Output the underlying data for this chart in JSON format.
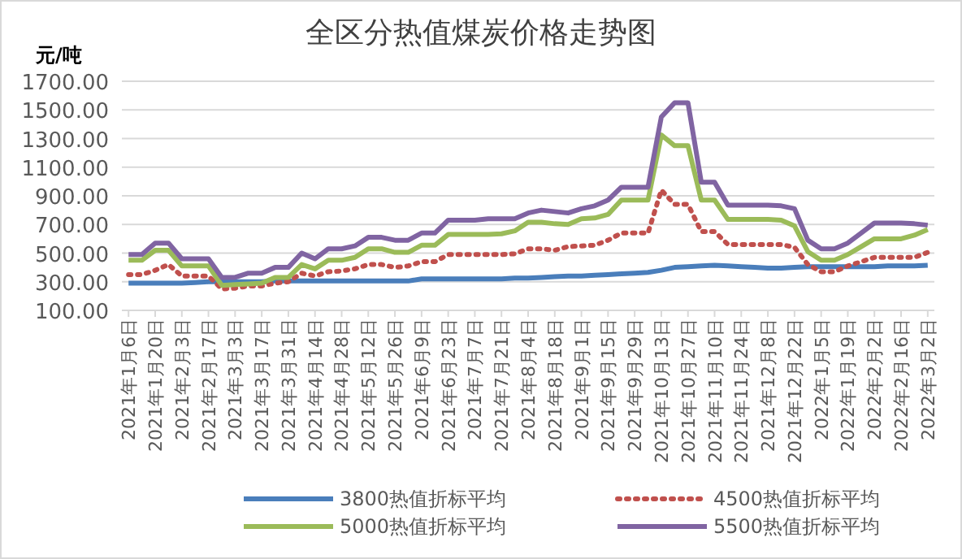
{
  "chart_data": {
    "type": "line",
    "title": "全区分热值煤炭价格走势图",
    "ylabel": "元/吨",
    "categories": [
      "2021年1月6日",
      null,
      "2021年1月20日",
      null,
      "2021年2月3日",
      null,
      "2021年2月17日",
      null,
      "2021年3月3日",
      null,
      "2021年3月17日",
      null,
      "2021年3月31日",
      null,
      "2021年4月14日",
      null,
      "2021年4月28日",
      null,
      "2021年5月12日",
      null,
      "2021年5月26日",
      null,
      "2021年6月9日",
      null,
      "2021年6月23日",
      null,
      "2021年7月7日",
      null,
      "2021年7月21日",
      null,
      "2021年8月4日",
      null,
      "2021年8月18日",
      null,
      "2021年9月1日",
      null,
      "2021年9月15日",
      null,
      "2021年9月29日",
      null,
      "2021年10月13日",
      null,
      "2021年10月27日",
      null,
      "2021年11月10日",
      null,
      "2021年11月24日",
      null,
      "2021年12月8日",
      null,
      "2021年12月22日",
      null,
      "2022年1月5日",
      null,
      "2022年1月19日",
      null,
      "2022年2月2日",
      null,
      "2022年2月16日",
      null,
      "2022年3月2日"
    ],
    "series": [
      {
        "name": "3800热值折标平均",
        "color": "#4a7ebb",
        "line_style": "solid",
        "values": [
          290,
          290,
          290,
          290,
          290,
          295,
          300,
          300,
          300,
          300,
          300,
          305,
          305,
          305,
          305,
          305,
          305,
          305,
          305,
          305,
          305,
          305,
          320,
          320,
          320,
          320,
          320,
          320,
          320,
          325,
          325,
          330,
          335,
          340,
          340,
          345,
          350,
          355,
          360,
          365,
          380,
          400,
          405,
          410,
          415,
          410,
          405,
          400,
          395,
          395,
          400,
          405,
          405,
          405,
          405,
          405,
          405,
          410,
          410,
          410,
          415
        ]
      },
      {
        "name": "4500热值折标平均",
        "color": "#c0504d",
        "line_style": "dotted",
        "values": [
          350,
          350,
          380,
          420,
          340,
          340,
          340,
          250,
          255,
          270,
          270,
          290,
          300,
          360,
          340,
          370,
          375,
          390,
          420,
          420,
          400,
          410,
          440,
          440,
          490,
          490,
          490,
          490,
          490,
          495,
          530,
          530,
          520,
          545,
          550,
          555,
          590,
          640,
          640,
          640,
          940,
          840,
          840,
          650,
          650,
          560,
          560,
          560,
          560,
          560,
          540,
          420,
          370,
          370,
          410,
          440,
          470,
          470,
          470,
          470,
          505
        ]
      },
      {
        "name": "5000热值折标平均",
        "color": "#9bbb59",
        "line_style": "solid",
        "values": [
          450,
          450,
          520,
          520,
          410,
          410,
          410,
          275,
          280,
          285,
          290,
          330,
          330,
          420,
          390,
          450,
          450,
          470,
          530,
          530,
          505,
          505,
          555,
          555,
          630,
          630,
          630,
          630,
          635,
          655,
          715,
          715,
          705,
          700,
          740,
          745,
          770,
          870,
          870,
          870,
          1325,
          1250,
          1250,
          870,
          870,
          735,
          735,
          735,
          735,
          730,
          690,
          510,
          450,
          450,
          490,
          545,
          600,
          600,
          600,
          625,
          665
        ]
      },
      {
        "name": "5500热值折标平均",
        "color": "#8064a2",
        "line_style": "solid",
        "values": [
          490,
          490,
          570,
          570,
          460,
          460,
          460,
          330,
          330,
          360,
          360,
          400,
          400,
          500,
          460,
          530,
          530,
          550,
          610,
          610,
          590,
          590,
          640,
          640,
          730,
          730,
          730,
          740,
          740,
          740,
          780,
          800,
          790,
          780,
          810,
          830,
          870,
          960,
          960,
          960,
          1450,
          1550,
          1550,
          995,
          995,
          835,
          835,
          835,
          835,
          830,
          810,
          590,
          530,
          530,
          570,
          640,
          710,
          710,
          710,
          705,
          695
        ]
      }
    ],
    "ylim": [
      100,
      1700
    ],
    "yticks": [
      {
        "value": 100,
        "label": "100.00"
      },
      {
        "value": 300,
        "label": "300.00"
      },
      {
        "value": 500,
        "label": "500.00"
      },
      {
        "value": 700,
        "label": "700.00"
      },
      {
        "value": 900,
        "label": "900.00"
      },
      {
        "value": 1100,
        "label": "1100.00"
      },
      {
        "value": 1300,
        "label": "1300.00"
      },
      {
        "value": 1500,
        "label": "1500.00"
      },
      {
        "value": 1700,
        "label": "1700.00"
      }
    ],
    "grid": "y",
    "legend": "bottom",
    "marker": "none"
  }
}
